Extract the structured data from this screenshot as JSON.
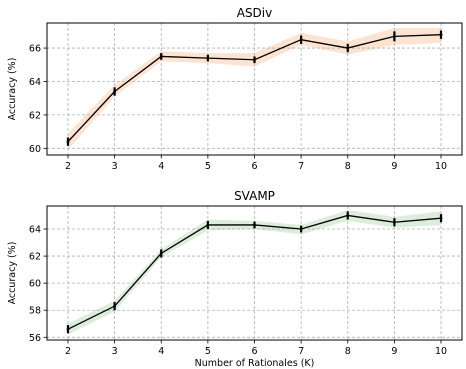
{
  "chart_data": [
    {
      "type": "line",
      "title": "ASDiv",
      "xlabel": "",
      "ylabel": "Accuracy (%)",
      "x": [
        2,
        3,
        4,
        5,
        6,
        7,
        8,
        9,
        10
      ],
      "xlim": [
        1.55,
        10.45
      ],
      "ylim": [
        59.6,
        67.5
      ],
      "yticks": [
        60,
        62,
        64,
        66
      ],
      "grid": true,
      "band_color": "#f5a36a",
      "series": [
        {
          "values": [
            60.4,
            63.4,
            65.5,
            65.4,
            65.3,
            66.5,
            66.0,
            66.7,
            66.8
          ],
          "band_low": [
            59.9,
            63.1,
            65.2,
            65.1,
            64.9,
            66.2,
            65.6,
            66.2,
            66.3
          ],
          "band_high": [
            60.9,
            63.8,
            65.8,
            65.7,
            65.7,
            66.9,
            66.4,
            67.2,
            67.2
          ],
          "err": [
            0.25,
            0.25,
            0.2,
            0.2,
            0.2,
            0.25,
            0.25,
            0.3,
            0.25
          ]
        }
      ]
    },
    {
      "type": "line",
      "title": "SVAMP",
      "xlabel": "Number of Rationales (K)",
      "ylabel": "Accuracy (%)",
      "x": [
        2,
        3,
        4,
        5,
        6,
        7,
        8,
        9,
        10
      ],
      "xlim": [
        1.55,
        10.45
      ],
      "ylim": [
        55.8,
        65.7
      ],
      "yticks": [
        56,
        58,
        60,
        62,
        64
      ],
      "grid": true,
      "band_color": "#8bc48a",
      "series": [
        {
          "values": [
            56.6,
            58.3,
            62.2,
            64.3,
            64.3,
            64.0,
            65.0,
            64.5,
            64.8
          ],
          "band_low": [
            56.2,
            57.9,
            61.9,
            63.9,
            64.0,
            63.6,
            64.6,
            64.1,
            64.3
          ],
          "band_high": [
            57.0,
            58.7,
            62.5,
            64.7,
            64.6,
            64.3,
            65.4,
            64.9,
            65.3
          ],
          "err": [
            0.3,
            0.3,
            0.3,
            0.3,
            0.25,
            0.25,
            0.3,
            0.3,
            0.3
          ]
        }
      ]
    }
  ]
}
